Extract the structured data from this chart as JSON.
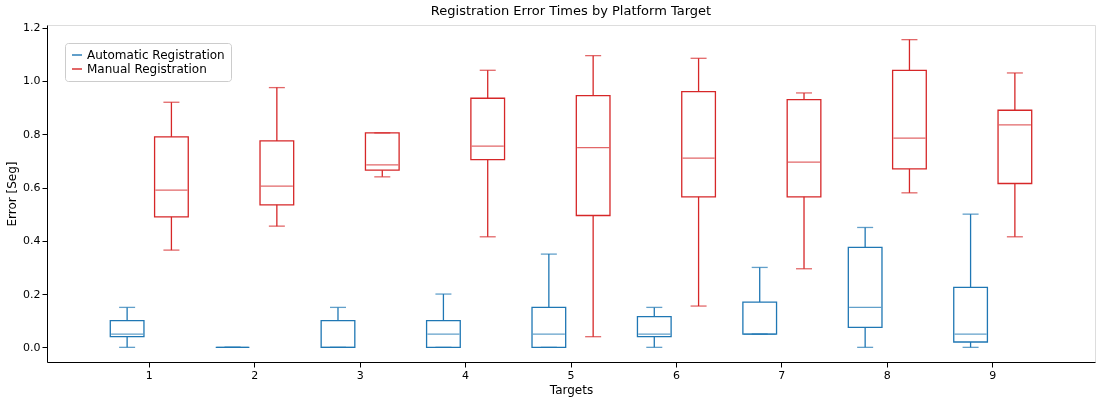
{
  "chart_data": {
    "type": "box",
    "title": "Registration Error Times by Platform Target",
    "xlabel": "Targets",
    "ylabel": "Error [Seg]",
    "categories": [
      "1",
      "2",
      "3",
      "4",
      "5",
      "6",
      "7",
      "8",
      "9"
    ],
    "ylim": [
      -0.055,
      1.21
    ],
    "yticks": [
      {
        "value": 0,
        "label": "0.0"
      },
      {
        "value": 0.2,
        "label": "0.2"
      },
      {
        "value": 0.4,
        "label": "0.4"
      },
      {
        "value": 0.6,
        "label": "0.6"
      },
      {
        "value": 0.8,
        "label": "0.8"
      },
      {
        "value": 1.0,
        "label": "1.0"
      },
      {
        "value": 1.2,
        "label": "1.2"
      }
    ],
    "grid": false,
    "legend": "top left",
    "series": [
      {
        "name": "Automatic Registration",
        "color": "#1f77b4",
        "boxes": [
          {
            "low": 0,
            "q1": 0.04,
            "median": 0.05,
            "q3": 0.1,
            "high": 0.15
          },
          {
            "low": 0,
            "q1": 0,
            "median": 0,
            "q3": 0,
            "high": 0
          },
          {
            "low": 0,
            "q1": 0,
            "median": 0,
            "q3": 0.1,
            "high": 0.15
          },
          {
            "low": 0,
            "q1": 0,
            "median": 0.05,
            "q3": 0.1,
            "high": 0.2
          },
          {
            "low": 0,
            "q1": 0,
            "median": 0.05,
            "q3": 0.15,
            "high": 0.35
          },
          {
            "low": 0,
            "q1": 0.04,
            "median": 0.05,
            "q3": 0.115,
            "high": 0.15
          },
          {
            "low": 0.05,
            "q1": 0.05,
            "median": 0.05,
            "q3": 0.17,
            "high": 0.3
          },
          {
            "low": 0,
            "q1": 0.075,
            "median": 0.15,
            "q3": 0.375,
            "high": 0.45
          },
          {
            "low": 0,
            "q1": 0.02,
            "median": 0.05,
            "q3": 0.225,
            "high": 0.5
          }
        ]
      },
      {
        "name": "Manual Registration",
        "color": "#d62728",
        "boxes": [
          {
            "low": 0.365,
            "q1": 0.49,
            "median": 0.59,
            "q3": 0.79,
            "high": 0.92
          },
          {
            "low": 0.455,
            "q1": 0.535,
            "median": 0.605,
            "q3": 0.775,
            "high": 0.975
          },
          {
            "low": 0.64,
            "q1": 0.665,
            "median": 0.685,
            "q3": 0.805,
            "high": 0.805
          },
          {
            "low": 0.415,
            "q1": 0.705,
            "median": 0.755,
            "q3": 0.935,
            "high": 1.04
          },
          {
            "low": 0.04,
            "q1": 0.495,
            "median": 0.75,
            "q3": 0.945,
            "high": 1.095
          },
          {
            "low": 0.155,
            "q1": 0.565,
            "median": 0.71,
            "q3": 0.96,
            "high": 1.085
          },
          {
            "low": 0.295,
            "q1": 0.565,
            "median": 0.695,
            "q3": 0.93,
            "high": 0.955
          },
          {
            "low": 0.58,
            "q1": 0.67,
            "median": 0.785,
            "q3": 1.04,
            "high": 1.155
          },
          {
            "low": 0.415,
            "q1": 0.615,
            "median": 0.835,
            "q3": 0.89,
            "high": 1.03
          }
        ]
      }
    ]
  }
}
